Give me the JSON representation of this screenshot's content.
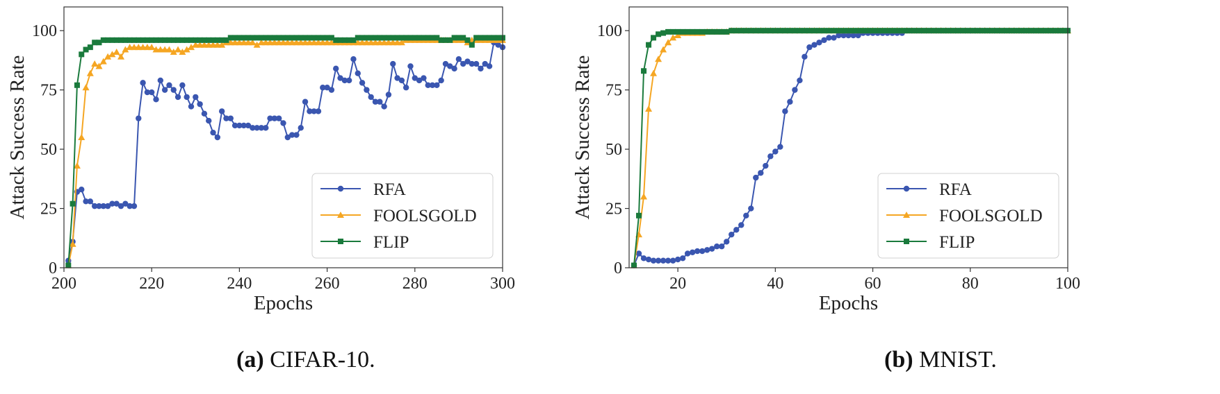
{
  "chart_data": [
    {
      "type": "line",
      "caption_label": "(a)",
      "caption_text": " CIFAR-10.",
      "xlabel": "Epochs",
      "ylabel": "Attack Success Rate",
      "xlim": [
        200,
        300
      ],
      "ylim": [
        0,
        110
      ],
      "xticks": [
        "200",
        "220",
        "240",
        "260",
        "280",
        "300"
      ],
      "yticks": [
        "0",
        "25",
        "50",
        "75",
        "100"
      ],
      "grid": false,
      "legend_position": "lower-right",
      "series": [
        {
          "name": "RFA",
          "color": "#3a56b0",
          "marker": "circle",
          "x_start": 201,
          "values": [
            3,
            11,
            32,
            33,
            28,
            28,
            26,
            26,
            26,
            26,
            27,
            27,
            26,
            27,
            26,
            26,
            63,
            78,
            74,
            74,
            71,
            79,
            75,
            77,
            75,
            72,
            77,
            72,
            68,
            72,
            69,
            65,
            62,
            57,
            55,
            66,
            63,
            63,
            60,
            60,
            60,
            60,
            59,
            59,
            59,
            59,
            63,
            63,
            63,
            61,
            55,
            56,
            56,
            59,
            70,
            66,
            66,
            66,
            76,
            76,
            75,
            84,
            80,
            79,
            79,
            88,
            82,
            78,
            75,
            72,
            70,
            70,
            68,
            73,
            86,
            80,
            79,
            76,
            85,
            80,
            79,
            80,
            77,
            77,
            77,
            79,
            86,
            85,
            84,
            88,
            86,
            87,
            86,
            86,
            84,
            86,
            85,
            95,
            94,
            93
          ]
        },
        {
          "name": "FOOLSGOLD",
          "color": "#f5a623",
          "marker": "triangle",
          "x_start": 201,
          "values": [
            1,
            10,
            43,
            55,
            76,
            82,
            86,
            85,
            87,
            89,
            90,
            91,
            89,
            92,
            93,
            93,
            93,
            93,
            93,
            93,
            92,
            92,
            92,
            92,
            91,
            92,
            91,
            92,
            93,
            94,
            94,
            94,
            94,
            94,
            94,
            94,
            95,
            95,
            95,
            95,
            95,
            95,
            95,
            94,
            95,
            95,
            95,
            95,
            95,
            95,
            95,
            95,
            95,
            95,
            95,
            95,
            95,
            95,
            95,
            95,
            95,
            95,
            95,
            95,
            95,
            95,
            95,
            95,
            95,
            95,
            95,
            95,
            95,
            95,
            95,
            95,
            95,
            96,
            96,
            96,
            96,
            96,
            96,
            96,
            96,
            96,
            96,
            96,
            96,
            96,
            96,
            95,
            96,
            96,
            96,
            96,
            96,
            96,
            96,
            96
          ]
        },
        {
          "name": "FLIP",
          "color": "#1a7a3c",
          "marker": "square",
          "x_start": 201,
          "values": [
            1,
            27,
            77,
            90,
            92,
            93,
            95,
            95,
            96,
            96,
            96,
            96,
            96,
            96,
            96,
            96,
            96,
            96,
            96,
            96,
            96,
            96,
            96,
            96,
            96,
            96,
            96,
            96,
            96,
            96,
            96,
            96,
            96,
            96,
            96,
            96,
            96,
            97,
            97,
            97,
            97,
            97,
            97,
            97,
            97,
            97,
            97,
            97,
            97,
            97,
            97,
            97,
            97,
            97,
            97,
            97,
            97,
            97,
            97,
            97,
            97,
            96,
            96,
            96,
            96,
            96,
            97,
            97,
            97,
            97,
            97,
            97,
            97,
            97,
            97,
            97,
            97,
            97,
            97,
            97,
            97,
            97,
            97,
            97,
            97,
            96,
            96,
            96,
            97,
            97,
            97,
            96,
            94,
            97,
            97,
            97,
            97,
            97,
            97,
            97
          ]
        }
      ]
    },
    {
      "type": "line",
      "caption_label": "(b)",
      "caption_text": " MNIST.",
      "xlabel": "Epochs",
      "ylabel": "Attack Success Rate",
      "xlim": [
        10,
        100
      ],
      "ylim": [
        0,
        110
      ],
      "xticks": [
        "20",
        "40",
        "60",
        "80",
        "100"
      ],
      "xtick_values": [
        20,
        40,
        60,
        80,
        100
      ],
      "yticks": [
        "0",
        "25",
        "50",
        "75",
        "100"
      ],
      "grid": false,
      "legend_position": "lower-right",
      "series": [
        {
          "name": "RFA",
          "color": "#3a56b0",
          "marker": "circle",
          "x_start": 11,
          "values": [
            1,
            6,
            4,
            3.5,
            3,
            3,
            3,
            3,
            3,
            3.5,
            4,
            6,
            6.5,
            7,
            7,
            7.5,
            8,
            9,
            9,
            11,
            14,
            16,
            18,
            22,
            25,
            38,
            40,
            43,
            47,
            49,
            51,
            66,
            70,
            75,
            79,
            89,
            93,
            94,
            95,
            96,
            97,
            97,
            98,
            98,
            98,
            98,
            98,
            99,
            99,
            99,
            99,
            99,
            99,
            99,
            99,
            99,
            100,
            100,
            100,
            100,
            100,
            100,
            100,
            100,
            100,
            100,
            100,
            100,
            100,
            100,
            100,
            100,
            100,
            100,
            100,
            100,
            100,
            100,
            100,
            100,
            100,
            100,
            100,
            100,
            100,
            100,
            100,
            100,
            100,
            100
          ]
        },
        {
          "name": "FOOLSGOLD",
          "color": "#f5a623",
          "marker": "triangle",
          "x_start": 11,
          "values": [
            1,
            14,
            30,
            67,
            82,
            88,
            92,
            95,
            97,
            98,
            99,
            99,
            99,
            99,
            99,
            99.5,
            99.5,
            99.5,
            99.5,
            99.5,
            100,
            100,
            100,
            100,
            100,
            100,
            100,
            100,
            100,
            100,
            100,
            100,
            100,
            100,
            100,
            100,
            100,
            100,
            100,
            100,
            100,
            100,
            100,
            100,
            100,
            100,
            100,
            100,
            100,
            100,
            100,
            100,
            100,
            100,
            100,
            100,
            100,
            100,
            100,
            100,
            100,
            100,
            100,
            100,
            100,
            100,
            100,
            100,
            100,
            100,
            100,
            100,
            100,
            100,
            100,
            100,
            100,
            100,
            100,
            100,
            100,
            100,
            100,
            100,
            100,
            100,
            100,
            100,
            100,
            100
          ]
        },
        {
          "name": "FLIP",
          "color": "#1a7a3c",
          "marker": "square",
          "x_start": 11,
          "values": [
            1,
            22,
            83,
            94,
            97,
            98.5,
            99,
            99.5,
            99.5,
            99.5,
            99.5,
            99.5,
            99.5,
            99.5,
            99.5,
            99.5,
            99.5,
            99.5,
            99.5,
            99.5,
            100,
            100,
            100,
            100,
            100,
            100,
            100,
            100,
            100,
            100,
            100,
            100,
            100,
            100,
            100,
            100,
            100,
            100,
            100,
            100,
            100,
            100,
            100,
            100,
            100,
            100,
            100,
            100,
            100,
            100,
            100,
            100,
            100,
            100,
            100,
            100,
            100,
            100,
            100,
            100,
            100,
            100,
            100,
            100,
            100,
            100,
            100,
            100,
            100,
            100,
            100,
            100,
            100,
            100,
            100,
            100,
            100,
            100,
            100,
            100,
            100,
            100,
            100,
            100,
            100,
            100,
            100,
            100,
            100,
            100
          ]
        }
      ]
    }
  ]
}
